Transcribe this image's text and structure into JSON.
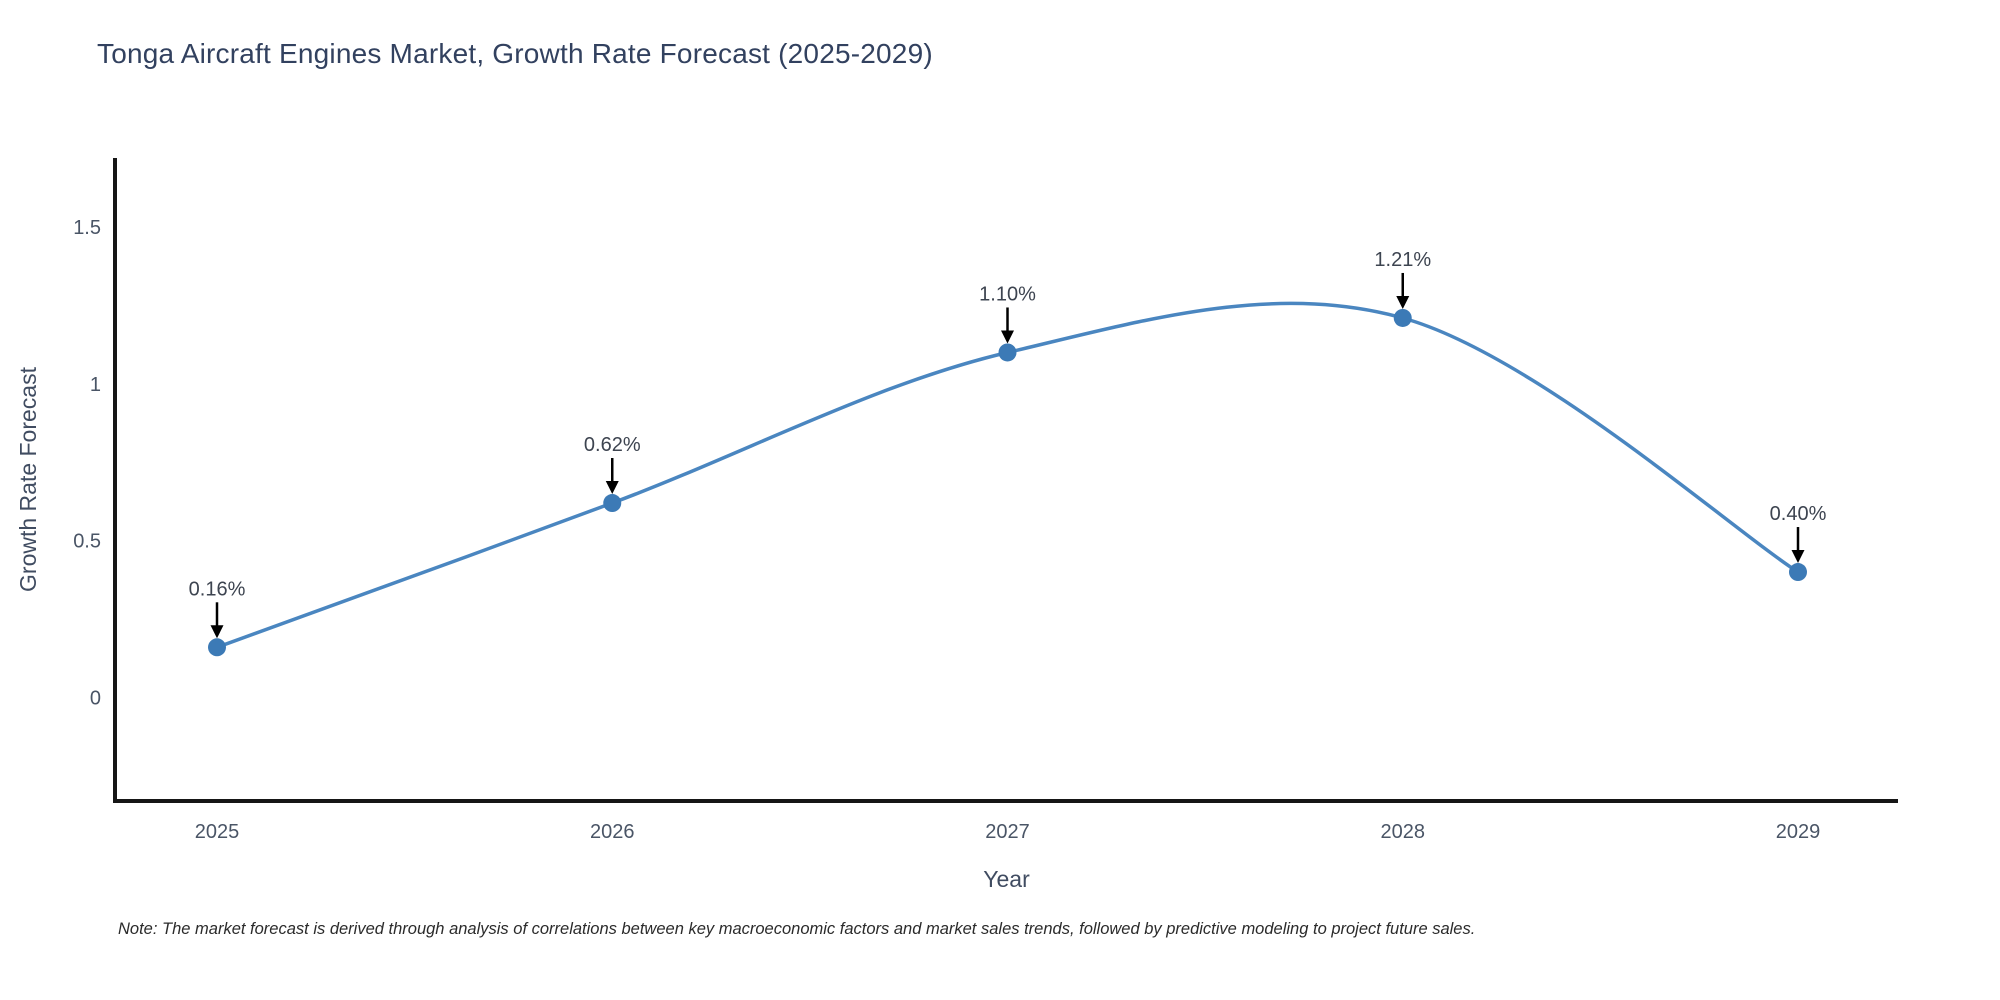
{
  "title": "Tonga Aircraft Engines Market, Growth Rate Forecast (2025-2029)",
  "note": "Note: The market forecast is derived through analysis of correlations between key macroeconomic factors and market sales trends, followed by predictive modeling to project future sales.",
  "chart_data": {
    "type": "line",
    "title": "Tonga Aircraft Engines Market, Growth Rate Forecast (2025-2029)",
    "xlabel": "Year",
    "ylabel": "Growth Rate Forecast",
    "categories": [
      "2025",
      "2026",
      "2027",
      "2028",
      "2029"
    ],
    "series": [
      {
        "name": "Growth Rate Forecast",
        "values": [
          0.16,
          0.62,
          1.1,
          1.21,
          0.4
        ],
        "point_labels": [
          "0.16%",
          "0.62%",
          "1.10%",
          "1.21%",
          "0.40%"
        ]
      }
    ],
    "line_shape": "spline",
    "markers": true,
    "annotations_arrows": true,
    "yticks": [
      0,
      0.5,
      1,
      1.5
    ],
    "ytick_labels": [
      "0",
      "0.5",
      "1",
      "1.5"
    ],
    "ylim": [
      -0.33,
      1.72
    ],
    "grid": false,
    "legend_position": "none",
    "colors": {
      "line": "#4a86c0",
      "marker": "#3c7ab6",
      "arrow": "#000000",
      "axis_line": "#161616",
      "title_text": "#32415f",
      "tick_text": "#4a5566",
      "axis_title_text": "#404c61",
      "annotation_text": "#3d4450",
      "note_text": "#2b2b2b"
    }
  }
}
